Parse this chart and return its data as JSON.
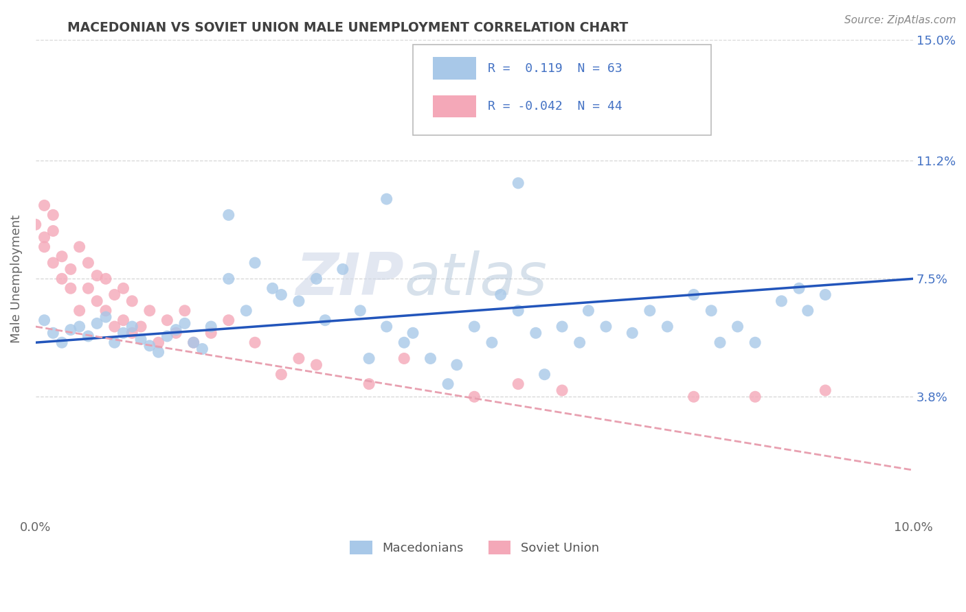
{
  "title": "MACEDONIAN VS SOVIET UNION MALE UNEMPLOYMENT CORRELATION CHART",
  "source_text": "Source: ZipAtlas.com",
  "ylabel": "Male Unemployment",
  "xlim": [
    0.0,
    0.1
  ],
  "ylim": [
    0.0,
    0.15
  ],
  "ytick_labels_right": [
    "3.8%",
    "7.5%",
    "11.2%",
    "15.0%"
  ],
  "ytick_vals_right": [
    0.038,
    0.075,
    0.112,
    0.15
  ],
  "macedonians_color": "#a8c8e8",
  "soviet_color": "#f4a8b8",
  "macedonians_line_color": "#2255bb",
  "soviet_line_color": "#e8a0b0",
  "background_color": "#ffffff",
  "grid_color": "#cccccc",
  "watermark_zip": "ZIP",
  "watermark_atlas": "atlas",
  "legend_R1": "0.119",
  "legend_N1": "63",
  "legend_R2": "-0.042",
  "legend_N2": "44",
  "legend_label1": "Macedonians",
  "legend_label2": "Soviet Union",
  "title_color": "#404040",
  "axis_label_color": "#4472c4",
  "mac_line_y0": 0.055,
  "mac_line_y1": 0.075,
  "sov_line_y0": 0.06,
  "sov_line_y1": 0.015
}
